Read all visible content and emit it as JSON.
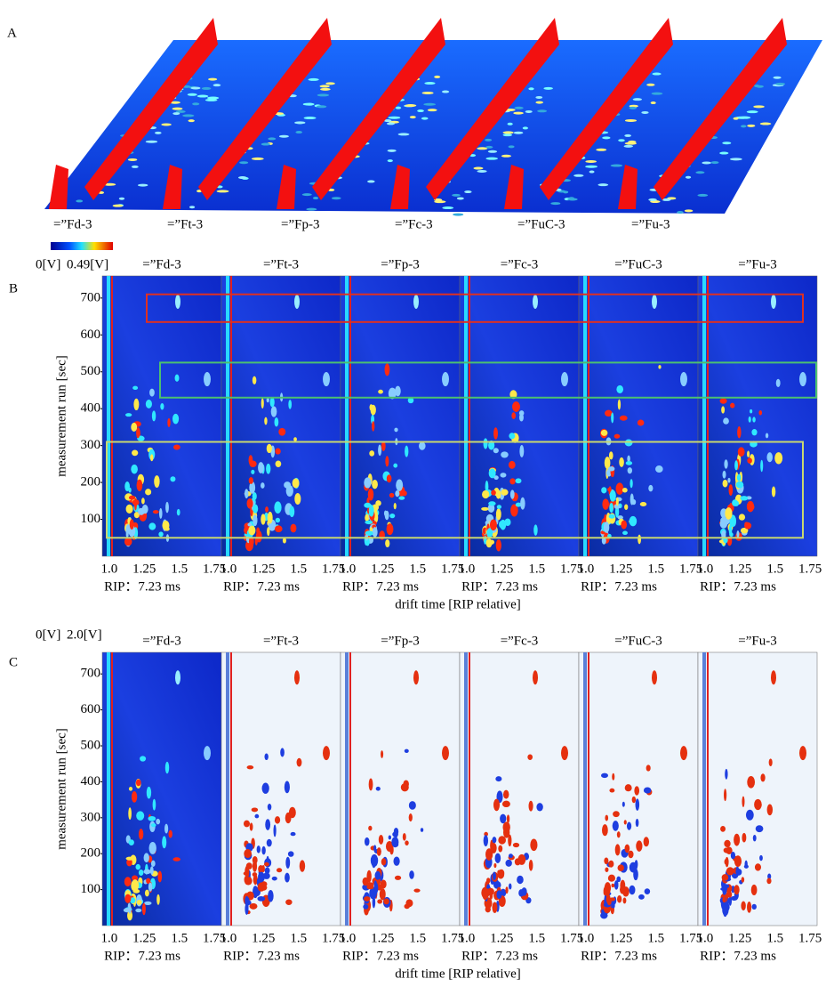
{
  "samples": [
    "=”Fd-3",
    "=”Ft-3",
    "=”Fp-3",
    "=”Fc-3",
    "=”FuC-3",
    "=”Fu-3"
  ],
  "panel_a": {
    "label": "A"
  },
  "panel_b": {
    "label": "B",
    "colorbar_min": "0[V]",
    "colorbar_max": "0.49[V]",
    "y_title": "measurement run [sec]",
    "ylim": [
      0,
      760
    ],
    "yticks": [
      100,
      200,
      300,
      400,
      500,
      600,
      700
    ],
    "xlim": [
      0.95,
      1.8
    ],
    "xticks": [
      {
        "value": 1.0,
        "label": "1.0"
      },
      1.25,
      1.5,
      1.75
    ],
    "rip": "RIP：7.23 ms",
    "x_title": "drift time [RIP relative]"
  },
  "panel_c": {
    "label": "C",
    "colorbar_min": "0[V]",
    "colorbar_max": "2.0[V]",
    "y_title": "measurement run [sec]",
    "ylim": [
      0,
      760
    ],
    "yticks": [
      100,
      200,
      300,
      400,
      500,
      600,
      700
    ],
    "xlim": [
      0.95,
      1.8
    ],
    "xticks": [
      {
        "value": 1.0,
        "label": "1.0"
      },
      1.25,
      1.5,
      1.75
    ],
    "rip": "RIP：7.23 ms",
    "x_title": "drift time [RIP relative]"
  }
}
